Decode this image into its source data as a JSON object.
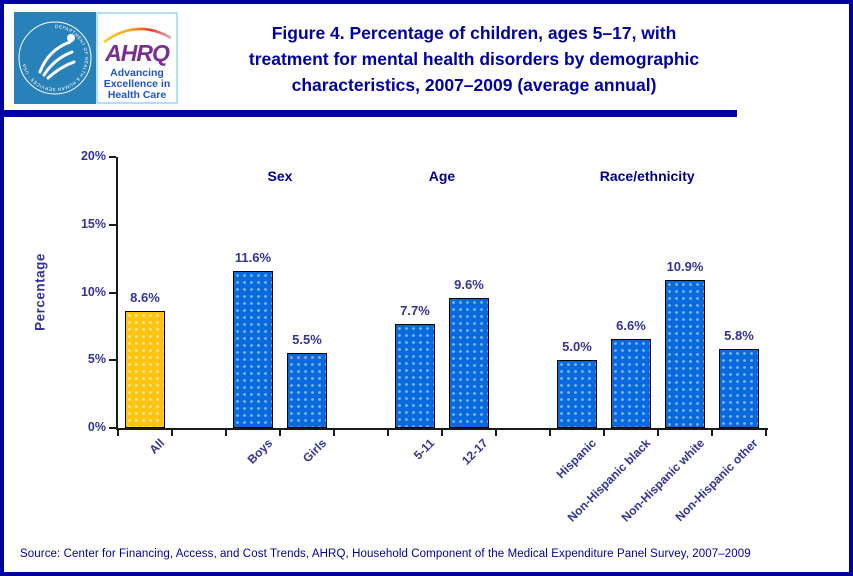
{
  "header": {
    "logo": {
      "seal_text": "DEPARTMENT OF HEALTH & HUMAN SERVICES · USA",
      "ahrq_acronym": "AHRQ",
      "tagline_lines": [
        "Advancing",
        "Excellence in",
        "Health Care"
      ]
    },
    "title_lines": [
      "Figure 4. Percentage of children, ages 5–17, with",
      "treatment for mental health disorders by demographic",
      "characteristics, 2007–2009 (average annual)"
    ]
  },
  "chart_data": {
    "type": "bar",
    "title": "Figure 4. Percentage of children, ages 5–17, with treatment for mental health disorders by demographic characteristics, 2007–2009 (average annual)",
    "xlabel": "",
    "ylabel": "Percentage",
    "ylim": [
      0,
      20
    ],
    "yticks": [
      0,
      5,
      10,
      15,
      20
    ],
    "ytick_labels": [
      "0%",
      "5%",
      "10%",
      "15%",
      "20%"
    ],
    "grid": false,
    "legend": false,
    "group_headers": [
      {
        "label": "Sex",
        "center_slot": 3
      },
      {
        "label": "Age",
        "center_slot": 6
      },
      {
        "label": "Race/ethnicity",
        "center_slot": 9.8
      }
    ],
    "categories": [
      "All",
      "Boys",
      "Girls",
      "5-11",
      "12-17",
      "Hispanic",
      "Non-Hispanic black",
      "Non-Hispanic white",
      "Non-Hispanic other"
    ],
    "values": [
      8.6,
      11.6,
      5.5,
      7.7,
      9.6,
      5.0,
      6.6,
      10.9,
      5.8
    ],
    "bars": [
      {
        "label": "All",
        "value": 8.6,
        "display": "8.6%",
        "slot": 0,
        "variant": "gold"
      },
      {
        "label": "Boys",
        "value": 11.6,
        "display": "11.6%",
        "slot": 2,
        "variant": "blue"
      },
      {
        "label": "Girls",
        "value": 5.5,
        "display": "5.5%",
        "slot": 3,
        "variant": "blue"
      },
      {
        "label": "5-11",
        "value": 7.7,
        "display": "7.7%",
        "slot": 5,
        "variant": "blue"
      },
      {
        "label": "12-17",
        "value": 9.6,
        "display": "9.6%",
        "slot": 6,
        "variant": "blue"
      },
      {
        "label": "Hispanic",
        "value": 5.0,
        "display": "5.0%",
        "slot": 8,
        "variant": "blue"
      },
      {
        "label": "Non-Hispanic black",
        "value": 6.6,
        "display": "6.6%",
        "slot": 9,
        "variant": "blue"
      },
      {
        "label": "Non-Hispanic white",
        "value": 10.9,
        "display": "10.9%",
        "slot": 10,
        "variant": "blue"
      },
      {
        "label": "Non-Hispanic other",
        "value": 5.8,
        "display": "5.8%",
        "slot": 11,
        "variant": "blue"
      }
    ]
  },
  "colors": {
    "page_border": "#0000A0",
    "title_text": "#0000A0",
    "axis_text": "#333399",
    "bar_blue": "#0A69DC",
    "bar_gold": "#FFC412",
    "logo_bg_blue": "#2881B8",
    "ahrq_purple": "#7B2E8E",
    "tagline_blue": "#1E56C4"
  },
  "footer": {
    "source": "Source: Center for Financing, Access, and Cost Trends, AHRQ, Household Component of the Medical Expenditure Panel Survey, 2007–2009"
  }
}
